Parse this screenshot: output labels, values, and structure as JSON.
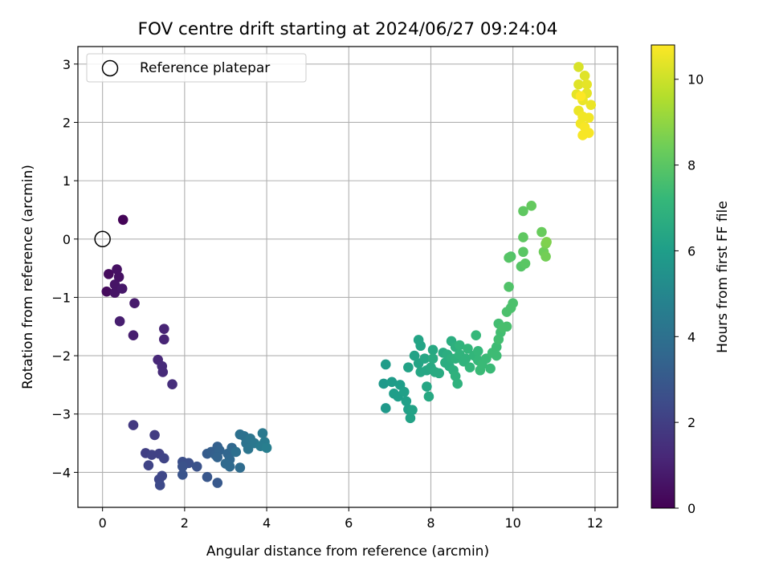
{
  "chart_data": {
    "type": "scatter",
    "title": "FOV centre drift starting at 2024/06/27 09:24:04",
    "xlabel": "Angular distance from reference (arcmin)",
    "ylabel": "Rotation from reference (arcmin)",
    "xlim": [
      -0.6,
      12.55
    ],
    "ylim": [
      -4.6,
      3.3
    ],
    "xticks": [
      0,
      2,
      4,
      6,
      8,
      10,
      12
    ],
    "yticks": [
      -4,
      -3,
      -2,
      -1,
      0,
      1,
      2,
      3
    ],
    "grid": true,
    "legend": {
      "placement": "upper-left",
      "entries": [
        {
          "label": "Reference platepar",
          "marker": "open-circle"
        }
      ]
    },
    "reference_point": {
      "x": 0,
      "y": 0
    },
    "colorbar": {
      "label": "Hours from first FF file",
      "colormap": "viridis",
      "range": [
        0,
        10.8
      ],
      "ticks": [
        0,
        2,
        4,
        6,
        8,
        10
      ]
    },
    "points": [
      {
        "x": 0.5,
        "y": 0.33,
        "c": 0.1
      },
      {
        "x": 0.15,
        "y": -0.6,
        "c": 0.3
      },
      {
        "x": 0.1,
        "y": -0.9,
        "c": 0.3
      },
      {
        "x": 0.35,
        "y": -0.52,
        "c": 0.5
      },
      {
        "x": 0.4,
        "y": -0.65,
        "c": 0.5
      },
      {
        "x": 0.3,
        "y": -0.78,
        "c": 0.6
      },
      {
        "x": 0.3,
        "y": -0.92,
        "c": 0.6
      },
      {
        "x": 0.48,
        "y": -0.85,
        "c": 0.7
      },
      {
        "x": 0.78,
        "y": -1.1,
        "c": 0.8
      },
      {
        "x": 0.42,
        "y": -1.41,
        "c": 0.9
      },
      {
        "x": 0.75,
        "y": -1.65,
        "c": 0.9
      },
      {
        "x": 1.5,
        "y": -1.54,
        "c": 1.1
      },
      {
        "x": 1.5,
        "y": -1.72,
        "c": 1.1
      },
      {
        "x": 1.35,
        "y": -2.07,
        "c": 1.2
      },
      {
        "x": 1.45,
        "y": -2.18,
        "c": 1.3
      },
      {
        "x": 1.47,
        "y": -2.28,
        "c": 1.3
      },
      {
        "x": 1.7,
        "y": -2.49,
        "c": 1.4
      },
      {
        "x": 0.75,
        "y": -3.19,
        "c": 1.8
      },
      {
        "x": 1.27,
        "y": -3.36,
        "c": 1.9
      },
      {
        "x": 1.05,
        "y": -3.67,
        "c": 2.0
      },
      {
        "x": 1.2,
        "y": -3.7,
        "c": 2.1
      },
      {
        "x": 1.38,
        "y": -3.68,
        "c": 2.1
      },
      {
        "x": 1.5,
        "y": -3.76,
        "c": 2.2
      },
      {
        "x": 1.12,
        "y": -3.88,
        "c": 2.2
      },
      {
        "x": 1.45,
        "y": -4.06,
        "c": 2.3
      },
      {
        "x": 1.38,
        "y": -4.12,
        "c": 2.3
      },
      {
        "x": 1.4,
        "y": -4.22,
        "c": 2.4
      },
      {
        "x": 1.95,
        "y": -3.82,
        "c": 2.6
      },
      {
        "x": 2.1,
        "y": -3.84,
        "c": 2.6
      },
      {
        "x": 1.95,
        "y": -3.9,
        "c": 2.7
      },
      {
        "x": 2.3,
        "y": -3.9,
        "c": 2.7
      },
      {
        "x": 1.95,
        "y": -4.04,
        "c": 2.8
      },
      {
        "x": 2.55,
        "y": -4.08,
        "c": 2.9
      },
      {
        "x": 2.8,
        "y": -4.18,
        "c": 3.0
      },
      {
        "x": 2.55,
        "y": -3.68,
        "c": 3.1
      },
      {
        "x": 2.65,
        "y": -3.65,
        "c": 3.2
      },
      {
        "x": 2.8,
        "y": -3.56,
        "c": 3.3
      },
      {
        "x": 2.75,
        "y": -3.7,
        "c": 3.3
      },
      {
        "x": 2.85,
        "y": -3.62,
        "c": 3.4
      },
      {
        "x": 2.8,
        "y": -3.74,
        "c": 3.4
      },
      {
        "x": 3.05,
        "y": -3.68,
        "c": 3.5
      },
      {
        "x": 3.15,
        "y": -3.58,
        "c": 3.6
      },
      {
        "x": 3.1,
        "y": -3.78,
        "c": 3.6
      },
      {
        "x": 3.0,
        "y": -3.85,
        "c": 3.7
      },
      {
        "x": 3.1,
        "y": -3.9,
        "c": 3.7
      },
      {
        "x": 3.35,
        "y": -3.92,
        "c": 3.8
      },
      {
        "x": 3.25,
        "y": -3.65,
        "c": 3.9
      },
      {
        "x": 3.35,
        "y": -3.35,
        "c": 4.0
      },
      {
        "x": 3.45,
        "y": -3.38,
        "c": 4.0
      },
      {
        "x": 3.5,
        "y": -3.5,
        "c": 4.1
      },
      {
        "x": 3.55,
        "y": -3.6,
        "c": 4.2
      },
      {
        "x": 3.6,
        "y": -3.42,
        "c": 4.2
      },
      {
        "x": 3.7,
        "y": -3.5,
        "c": 4.3
      },
      {
        "x": 3.9,
        "y": -3.33,
        "c": 4.4
      },
      {
        "x": 3.95,
        "y": -3.48,
        "c": 4.5
      },
      {
        "x": 3.85,
        "y": -3.55,
        "c": 4.5
      },
      {
        "x": 4.0,
        "y": -3.58,
        "c": 4.6
      },
      {
        "x": 6.9,
        "y": -2.9,
        "c": 5.8
      },
      {
        "x": 6.85,
        "y": -2.48,
        "c": 5.8
      },
      {
        "x": 6.9,
        "y": -2.15,
        "c": 5.9
      },
      {
        "x": 7.05,
        "y": -2.45,
        "c": 5.9
      },
      {
        "x": 7.1,
        "y": -2.65,
        "c": 6.0
      },
      {
        "x": 7.25,
        "y": -2.5,
        "c": 6.0
      },
      {
        "x": 7.2,
        "y": -2.7,
        "c": 6.0
      },
      {
        "x": 7.35,
        "y": -2.62,
        "c": 6.1
      },
      {
        "x": 7.4,
        "y": -2.78,
        "c": 6.1
      },
      {
        "x": 7.45,
        "y": -2.92,
        "c": 6.1
      },
      {
        "x": 7.55,
        "y": -2.93,
        "c": 6.2
      },
      {
        "x": 7.5,
        "y": -3.07,
        "c": 6.2
      },
      {
        "x": 7.45,
        "y": -2.2,
        "c": 6.2
      },
      {
        "x": 7.6,
        "y": -2.0,
        "c": 6.2
      },
      {
        "x": 7.7,
        "y": -1.73,
        "c": 6.3
      },
      {
        "x": 7.75,
        "y": -1.83,
        "c": 6.3
      },
      {
        "x": 7.7,
        "y": -2.13,
        "c": 6.3
      },
      {
        "x": 7.75,
        "y": -2.28,
        "c": 6.4
      },
      {
        "x": 7.85,
        "y": -2.05,
        "c": 6.4
      },
      {
        "x": 7.9,
        "y": -2.25,
        "c": 6.4
      },
      {
        "x": 7.9,
        "y": -2.53,
        "c": 6.4
      },
      {
        "x": 7.95,
        "y": -2.7,
        "c": 6.5
      },
      {
        "x": 8.0,
        "y": -2.2,
        "c": 6.5
      },
      {
        "x": 8.05,
        "y": -1.9,
        "c": 6.5
      },
      {
        "x": 8.05,
        "y": -2.05,
        "c": 6.6
      },
      {
        "x": 8.1,
        "y": -2.28,
        "c": 6.6
      },
      {
        "x": 8.2,
        "y": -2.3,
        "c": 6.6
      },
      {
        "x": 8.3,
        "y": -1.95,
        "c": 6.6
      },
      {
        "x": 8.35,
        "y": -2.12,
        "c": 6.7
      },
      {
        "x": 8.4,
        "y": -1.98,
        "c": 6.7
      },
      {
        "x": 8.45,
        "y": -2.18,
        "c": 6.7
      },
      {
        "x": 8.5,
        "y": -1.75,
        "c": 6.7
      },
      {
        "x": 8.5,
        "y": -2.05,
        "c": 6.8
      },
      {
        "x": 8.55,
        "y": -2.25,
        "c": 6.8
      },
      {
        "x": 8.6,
        "y": -1.85,
        "c": 6.8
      },
      {
        "x": 8.6,
        "y": -2.05,
        "c": 6.9
      },
      {
        "x": 8.6,
        "y": -2.35,
        "c": 6.9
      },
      {
        "x": 8.65,
        "y": -2.48,
        "c": 6.9
      },
      {
        "x": 8.7,
        "y": -1.98,
        "c": 7.0
      },
      {
        "x": 8.7,
        "y": -1.82,
        "c": 7.0
      },
      {
        "x": 8.8,
        "y": -2.1,
        "c": 7.0
      },
      {
        "x": 8.85,
        "y": -2.05,
        "c": 7.0
      },
      {
        "x": 8.9,
        "y": -1.88,
        "c": 7.1
      },
      {
        "x": 8.95,
        "y": -2.2,
        "c": 7.1
      },
      {
        "x": 9.05,
        "y": -2.0,
        "c": 7.1
      },
      {
        "x": 9.1,
        "y": -1.65,
        "c": 7.2
      },
      {
        "x": 9.15,
        "y": -1.92,
        "c": 7.2
      },
      {
        "x": 9.15,
        "y": -2.08,
        "c": 7.2
      },
      {
        "x": 9.2,
        "y": -2.25,
        "c": 7.3
      },
      {
        "x": 9.25,
        "y": -2.15,
        "c": 7.3
      },
      {
        "x": 9.35,
        "y": -2.05,
        "c": 7.3
      },
      {
        "x": 9.45,
        "y": -2.22,
        "c": 7.3
      },
      {
        "x": 9.5,
        "y": -1.95,
        "c": 7.4
      },
      {
        "x": 9.6,
        "y": -1.85,
        "c": 7.4
      },
      {
        "x": 9.6,
        "y": -2.0,
        "c": 7.4
      },
      {
        "x": 9.65,
        "y": -1.72,
        "c": 7.5
      },
      {
        "x": 9.7,
        "y": -1.6,
        "c": 7.5
      },
      {
        "x": 9.65,
        "y": -1.45,
        "c": 7.5
      },
      {
        "x": 9.75,
        "y": -1.52,
        "c": 7.6
      },
      {
        "x": 9.85,
        "y": -1.5,
        "c": 7.6
      },
      {
        "x": 9.85,
        "y": -1.25,
        "c": 7.7
      },
      {
        "x": 9.95,
        "y": -1.18,
        "c": 7.7
      },
      {
        "x": 10.0,
        "y": -1.1,
        "c": 7.7
      },
      {
        "x": 9.9,
        "y": -0.82,
        "c": 7.8
      },
      {
        "x": 9.95,
        "y": -0.3,
        "c": 7.8
      },
      {
        "x": 9.9,
        "y": -0.32,
        "c": 7.9
      },
      {
        "x": 10.2,
        "y": -0.47,
        "c": 7.9
      },
      {
        "x": 10.3,
        "y": -0.42,
        "c": 8.0
      },
      {
        "x": 10.25,
        "y": -0.22,
        "c": 8.0
      },
      {
        "x": 10.25,
        "y": 0.03,
        "c": 8.1
      },
      {
        "x": 10.25,
        "y": 0.48,
        "c": 8.1
      },
      {
        "x": 10.45,
        "y": 0.57,
        "c": 8.2
      },
      {
        "x": 10.7,
        "y": 0.12,
        "c": 8.3
      },
      {
        "x": 10.75,
        "y": -0.22,
        "c": 8.4
      },
      {
        "x": 10.8,
        "y": -0.3,
        "c": 8.5
      },
      {
        "x": 10.8,
        "y": -0.08,
        "c": 8.6
      },
      {
        "x": 10.82,
        "y": -0.05,
        "c": 8.7
      },
      {
        "x": 11.6,
        "y": 2.95,
        "c": 10.2
      },
      {
        "x": 11.75,
        "y": 2.8,
        "c": 10.3
      },
      {
        "x": 11.6,
        "y": 2.65,
        "c": 10.3
      },
      {
        "x": 11.8,
        "y": 2.65,
        "c": 10.4
      },
      {
        "x": 11.55,
        "y": 2.48,
        "c": 10.4
      },
      {
        "x": 11.8,
        "y": 2.5,
        "c": 10.4
      },
      {
        "x": 11.7,
        "y": 2.38,
        "c": 10.5
      },
      {
        "x": 11.9,
        "y": 2.3,
        "c": 10.5
      },
      {
        "x": 11.6,
        "y": 2.2,
        "c": 10.5
      },
      {
        "x": 11.7,
        "y": 2.1,
        "c": 10.6
      },
      {
        "x": 11.85,
        "y": 2.08,
        "c": 10.6
      },
      {
        "x": 11.65,
        "y": 1.98,
        "c": 10.6
      },
      {
        "x": 11.75,
        "y": 1.92,
        "c": 10.7
      },
      {
        "x": 11.85,
        "y": 1.82,
        "c": 10.7
      },
      {
        "x": 11.7,
        "y": 1.78,
        "c": 10.7
      },
      {
        "x": 11.65,
        "y": 2.45,
        "c": 10.8
      }
    ]
  }
}
